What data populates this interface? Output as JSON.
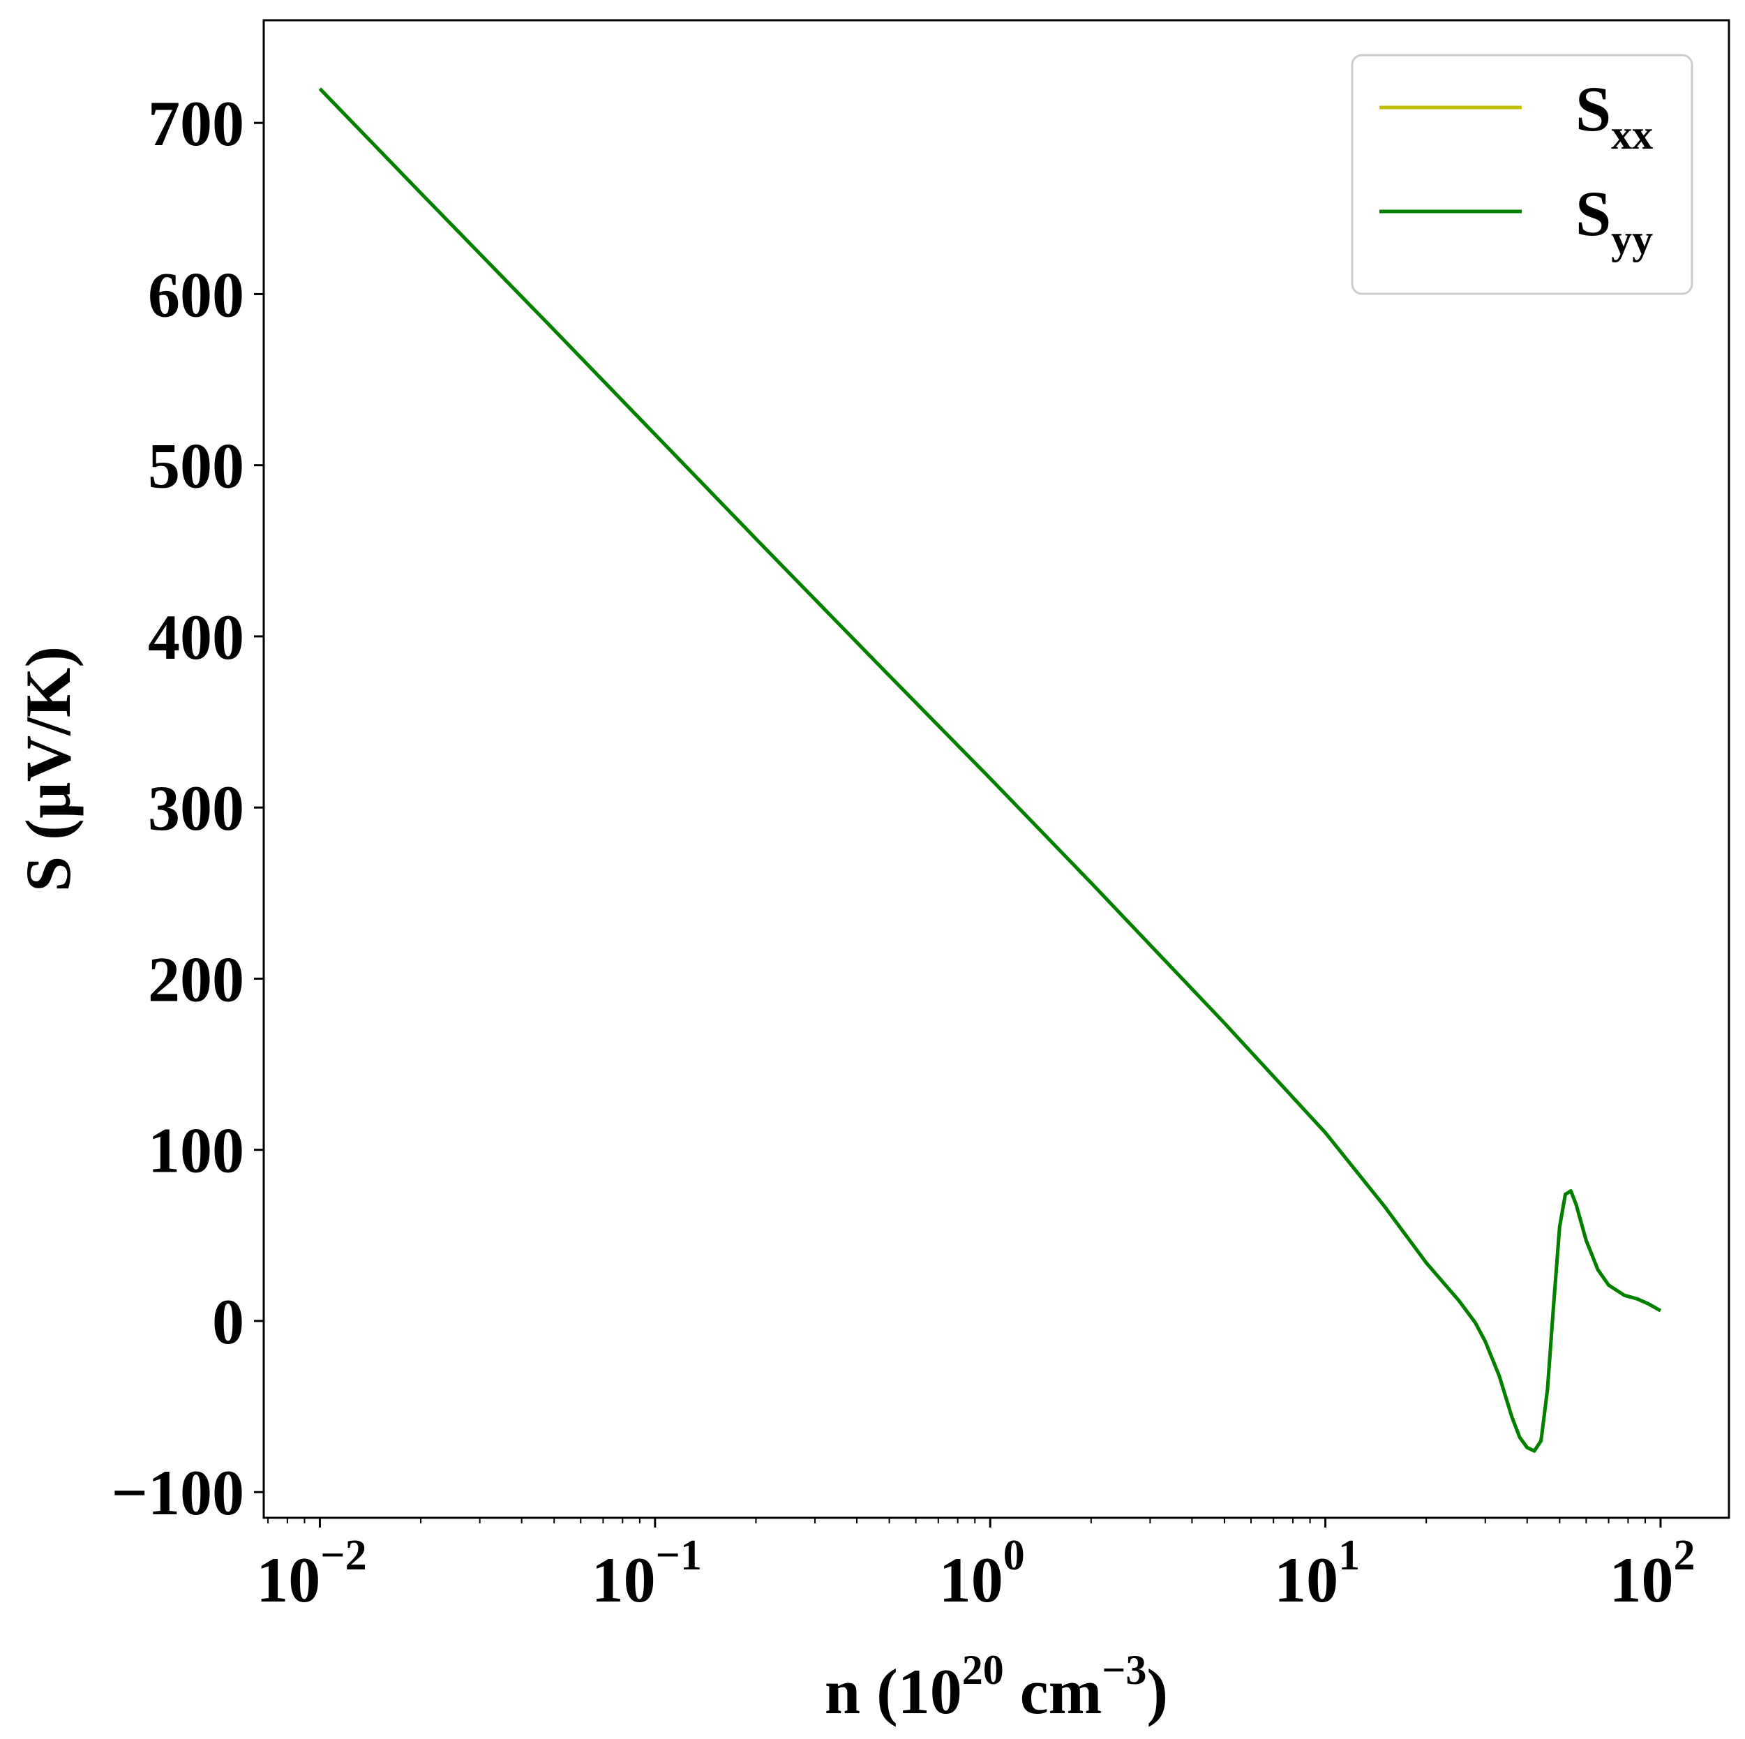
{
  "chart_data": {
    "type": "line",
    "xscale": "log",
    "xlim": [
      0.0068,
      160
    ],
    "ylim": [
      -115,
      760
    ],
    "x_ticks": [
      {
        "value": 0.01,
        "base": "10",
        "exp": "−2"
      },
      {
        "value": 0.1,
        "base": "10",
        "exp": "−1"
      },
      {
        "value": 1,
        "base": "10",
        "exp": "0"
      },
      {
        "value": 10,
        "base": "10",
        "exp": "1"
      },
      {
        "value": 100,
        "base": "10",
        "exp": "2"
      }
    ],
    "y_ticks": [
      "−100",
      "0",
      "100",
      "200",
      "300",
      "400",
      "500",
      "600",
      "700"
    ],
    "xlabel": {
      "main": "n (10",
      "sup1": "20",
      "mid": " cm",
      "sup2": "−3",
      "end": ")"
    },
    "ylabel": "S (µV/K)",
    "grid": false,
    "legend": {
      "position": "top-right",
      "entries": [
        {
          "main": "S",
          "sub": "xx",
          "color": "#bfbf00"
        },
        {
          "main": "S",
          "sub": "yy",
          "color": "#008000"
        }
      ]
    },
    "series": [
      {
        "name": "Sxx",
        "color": "#bfbf00",
        "points": [
          [
            0.01,
            720
          ],
          [
            0.02,
            659
          ],
          [
            0.05,
            579
          ],
          [
            0.1,
            518
          ],
          [
            0.2,
            457
          ],
          [
            0.5,
            377
          ],
          [
            1,
            317
          ],
          [
            2,
            256
          ],
          [
            5,
            174
          ],
          [
            10,
            110
          ],
          [
            15,
            67
          ],
          [
            20,
            34
          ],
          [
            25,
            12
          ],
          [
            28,
            -1
          ],
          [
            30,
            -12
          ],
          [
            33,
            -32
          ],
          [
            36,
            -56
          ],
          [
            38,
            -68
          ],
          [
            40,
            -74
          ],
          [
            42,
            -76
          ],
          [
            44,
            -70
          ],
          [
            46,
            -40
          ],
          [
            48,
            10
          ],
          [
            50,
            55
          ],
          [
            52,
            74
          ],
          [
            54,
            76
          ],
          [
            56,
            68
          ],
          [
            60,
            47
          ],
          [
            65,
            30
          ],
          [
            70,
            21
          ],
          [
            78,
            15
          ],
          [
            85,
            13
          ],
          [
            92,
            10
          ],
          [
            100,
            6
          ]
        ]
      },
      {
        "name": "Syy",
        "color": "#008000",
        "points": [
          [
            0.01,
            720
          ],
          [
            0.02,
            659
          ],
          [
            0.05,
            579
          ],
          [
            0.1,
            518
          ],
          [
            0.2,
            457
          ],
          [
            0.5,
            377
          ],
          [
            1,
            317
          ],
          [
            2,
            256
          ],
          [
            5,
            174
          ],
          [
            10,
            110
          ],
          [
            15,
            67
          ],
          [
            20,
            34
          ],
          [
            25,
            12
          ],
          [
            28,
            -1
          ],
          [
            30,
            -12
          ],
          [
            33,
            -32
          ],
          [
            36,
            -56
          ],
          [
            38,
            -68
          ],
          [
            40,
            -74
          ],
          [
            42,
            -76
          ],
          [
            44,
            -70
          ],
          [
            46,
            -40
          ],
          [
            48,
            10
          ],
          [
            50,
            55
          ],
          [
            52,
            74
          ],
          [
            54,
            76
          ],
          [
            56,
            68
          ],
          [
            60,
            47
          ],
          [
            65,
            30
          ],
          [
            70,
            21
          ],
          [
            78,
            15
          ],
          [
            85,
            13
          ],
          [
            92,
            10
          ],
          [
            100,
            6
          ]
        ]
      }
    ]
  }
}
